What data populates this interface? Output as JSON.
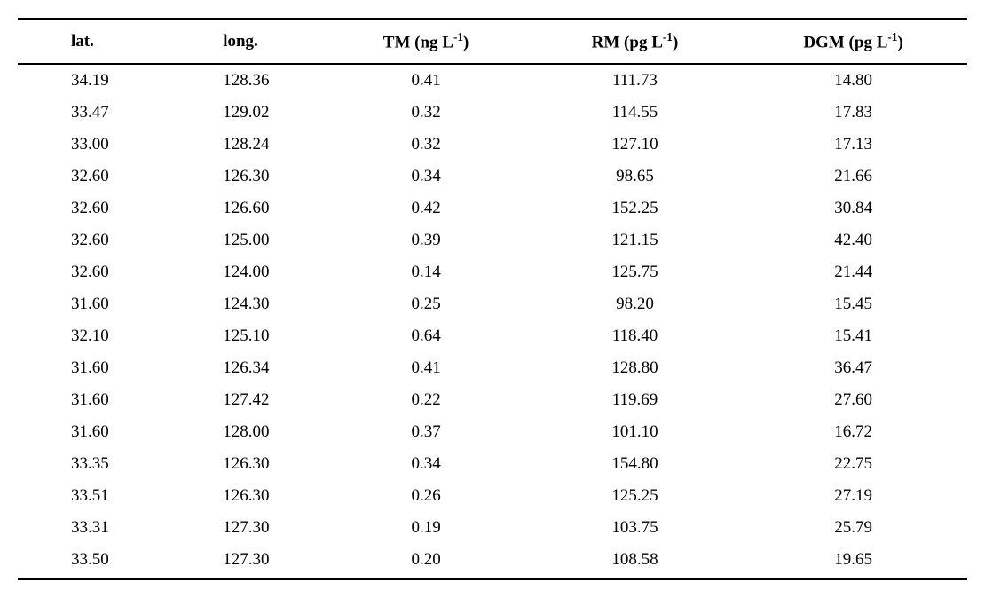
{
  "table": {
    "type": "table",
    "background_color": "#ffffff",
    "border_color": "#000000",
    "font_family": "Times New Roman",
    "header_fontsize": 19,
    "body_fontsize": 19,
    "header_fontweight": "bold",
    "columns": [
      {
        "key": "lat",
        "label_html": "lat.",
        "align": "left",
        "width_pct": 16
      },
      {
        "key": "long",
        "label_html": "long.",
        "align": "left",
        "width_pct": 16
      },
      {
        "key": "tm",
        "label_html": "TM (ng L<sup>-1</sup>)",
        "align": "center",
        "width_pct": 22
      },
      {
        "key": "rm",
        "label_html": "RM (pg L<sup>-1</sup>)",
        "align": "center",
        "width_pct": 22
      },
      {
        "key": "dgm",
        "label_html": "DGM (pg L<sup>-1</sup>)",
        "align": "center",
        "width_pct": 24
      }
    ],
    "rows": [
      {
        "lat": "34.19",
        "long": "128.36",
        "tm": "0.41",
        "rm": "111.73",
        "dgm": "14.80"
      },
      {
        "lat": "33.47",
        "long": "129.02",
        "tm": "0.32",
        "rm": "114.55",
        "dgm": "17.83"
      },
      {
        "lat": "33.00",
        "long": "128.24",
        "tm": "0.32",
        "rm": "127.10",
        "dgm": "17.13"
      },
      {
        "lat": "32.60",
        "long": "126.30",
        "tm": "0.34",
        "rm": "98.65",
        "dgm": "21.66"
      },
      {
        "lat": "32.60",
        "long": "126.60",
        "tm": "0.42",
        "rm": "152.25",
        "dgm": "30.84"
      },
      {
        "lat": "32.60",
        "long": "125.00",
        "tm": "0.39",
        "rm": "121.15",
        "dgm": "42.40"
      },
      {
        "lat": "32.60",
        "long": "124.00",
        "tm": "0.14",
        "rm": "125.75",
        "dgm": "21.44"
      },
      {
        "lat": "31.60",
        "long": "124.30",
        "tm": "0.25",
        "rm": "98.20",
        "dgm": "15.45"
      },
      {
        "lat": "32.10",
        "long": "125.10",
        "tm": "0.64",
        "rm": "118.40",
        "dgm": "15.41"
      },
      {
        "lat": "31.60",
        "long": "126.34",
        "tm": "0.41",
        "rm": "128.80",
        "dgm": "36.47"
      },
      {
        "lat": "31.60",
        "long": "127.42",
        "tm": "0.22",
        "rm": "119.69",
        "dgm": "27.60"
      },
      {
        "lat": "31.60",
        "long": "128.00",
        "tm": "0.37",
        "rm": "101.10",
        "dgm": "16.72"
      },
      {
        "lat": "33.35",
        "long": "126.30",
        "tm": "0.34",
        "rm": "154.80",
        "dgm": "22.75"
      },
      {
        "lat": "33.51",
        "long": "126.30",
        "tm": "0.26",
        "rm": "125.25",
        "dgm": "27.19"
      },
      {
        "lat": "33.31",
        "long": "127.30",
        "tm": "0.19",
        "rm": "103.75",
        "dgm": "25.79"
      },
      {
        "lat": "33.50",
        "long": "127.30",
        "tm": "0.20",
        "rm": "108.58",
        "dgm": "19.65"
      }
    ]
  }
}
